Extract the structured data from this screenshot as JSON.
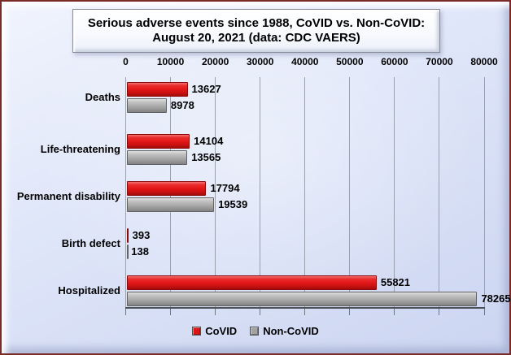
{
  "title": {
    "line1": "Serious adverse events since 1988, CoVID vs. Non-CoVID:",
    "line2": "August 20, 2021 (data: CDC VAERS)"
  },
  "chart_data": {
    "type": "bar",
    "orientation": "horizontal",
    "title": "Serious adverse events since 1988, CoVID vs. Non-CoVID: August 20, 2021 (data: CDC VAERS)",
    "categories": [
      "Deaths",
      "Life-threatening",
      "Permanent disability",
      "Birth defect",
      "Hospitalized"
    ],
    "series": [
      {
        "name": "CoVID",
        "color": "#df1414",
        "values": [
          13627,
          14104,
          17794,
          393,
          55821
        ]
      },
      {
        "name": "Non-CoVID",
        "color": "#a2a2a2",
        "values": [
          8978,
          13565,
          19539,
          138,
          78265
        ]
      }
    ],
    "x_ticks": [
      0,
      10000,
      20000,
      30000,
      40000,
      50000,
      60000,
      70000,
      80000
    ],
    "xlim": [
      0,
      80000
    ],
    "xlabel": "",
    "ylabel": "",
    "grid": true,
    "value_labels": true,
    "legend_position": "bottom"
  },
  "colors": {
    "frame_border": "#7b2b27",
    "background": "#dbe3f8",
    "gridline": "#99a1ad",
    "covid_red": "#df1414",
    "noncovid_gray": "#a2a2a2"
  }
}
